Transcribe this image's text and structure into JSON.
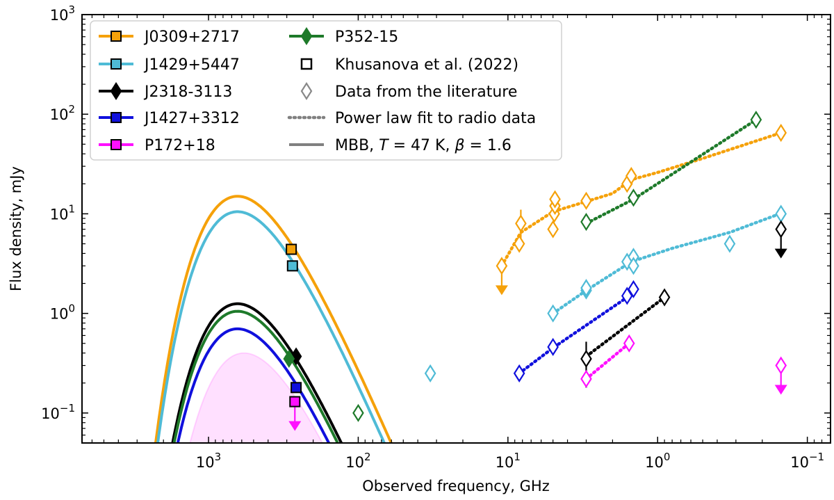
{
  "chart_data": {
    "type": "scatter",
    "title": "",
    "xlabel": "Observed frequency, GHz",
    "ylabel": "Flux density, mJy",
    "x_scale": "log",
    "y_scale": "log",
    "x_inverted": true,
    "xlim": [
      7000,
      0.07
    ],
    "ylim": [
      0.05,
      1000
    ],
    "x_ticks": [
      {
        "value": 1000,
        "label": "10^3",
        "base": "10",
        "exp": "3"
      },
      {
        "value": 100,
        "label": "10^2",
        "base": "10",
        "exp": "2"
      },
      {
        "value": 10,
        "label": "10^1",
        "base": "10",
        "exp": "1"
      },
      {
        "value": 1,
        "label": "10^0",
        "base": "10",
        "exp": "0"
      },
      {
        "value": 0.1,
        "label": "10^-1",
        "base": "10",
        "exp": "−1"
      }
    ],
    "y_ticks": [
      {
        "value": 1000,
        "label": "10^3",
        "base": "10",
        "exp": "3"
      },
      {
        "value": 100,
        "label": "10^2",
        "base": "10",
        "exp": "2"
      },
      {
        "value": 10,
        "label": "10^1",
        "base": "10",
        "exp": "1"
      },
      {
        "value": 1,
        "label": "10^0",
        "base": "10",
        "exp": "0"
      },
      {
        "value": 0.1,
        "label": "10^-1",
        "base": "10",
        "exp": "−1"
      }
    ],
    "legend_position": "top-left",
    "legend_col1": [
      {
        "label": "J0309+2717",
        "color": "#f5a10a",
        "marker": "square"
      },
      {
        "label": "J1429+5447",
        "color": "#4fbbd6",
        "marker": "square"
      },
      {
        "label": "J2318-3113",
        "color": "#000000",
        "marker": "diamond"
      },
      {
        "label": "J1427+3312",
        "color": "#1010dd",
        "marker": "square"
      },
      {
        "label": "P172+18",
        "color": "#ff10ff",
        "marker": "square"
      }
    ],
    "legend_col2": [
      {
        "label": "P352-15",
        "color": "#1e7a2a",
        "type": "diamond-line"
      },
      {
        "label": "Khusanova et al. (2022)",
        "color": "#000000",
        "type": "open-square"
      },
      {
        "label": "Data from the literature",
        "color": "#888888",
        "type": "open-diamond"
      },
      {
        "label": "Power law fit to radio data",
        "color": "#808080",
        "type": "dotted-line"
      },
      {
        "label": "MBB, T = 47 K, β = 1.6",
        "label_prefix": "MBB, ",
        "label_T": "T",
        "label_mid": " = 47 K, ",
        "label_beta": "β",
        "label_end": " = 1.6",
        "color": "#808080",
        "type": "solid-line"
      }
    ],
    "series": [
      {
        "name": "J0309+2717",
        "color": "#f5a10a",
        "mbb": {
          "peak_x": 640,
          "peak_y": 15
        },
        "khusanova": [
          {
            "x": 280,
            "y": 4.4
          }
        ],
        "literature": [
          {
            "x": 11,
            "y": 3.0,
            "upper_limit": true
          },
          {
            "x": 8.4,
            "y": 5.0
          },
          {
            "x": 8.2,
            "y": 8.0
          },
          {
            "x": 5.0,
            "y": 7.0
          },
          {
            "x": 4.9,
            "y": 10.0
          },
          {
            "x": 4.85,
            "y": 12.0
          },
          {
            "x": 4.85,
            "y": 14.0
          },
          {
            "x": 3.0,
            "y": 13.5
          },
          {
            "x": 1.6,
            "y": 20.0
          },
          {
            "x": 1.5,
            "y": 24.0
          },
          {
            "x": 0.15,
            "y": 65.0
          }
        ],
        "literature_errors": [
          {
            "x": 8.2,
            "lo": 4.5,
            "hi": 11.0
          }
        ],
        "fit": [
          {
            "x": 11,
            "y": 3.0
          },
          {
            "x": 8.2,
            "y": 6.5
          },
          {
            "x": 5.0,
            "y": 10.5
          },
          {
            "x": 2.0,
            "y": 16.0
          },
          {
            "x": 1.5,
            "y": 22.0
          },
          {
            "x": 1.0,
            "y": 26.0
          },
          {
            "x": 0.5,
            "y": 36.0
          },
          {
            "x": 0.15,
            "y": 65.0
          }
        ]
      },
      {
        "name": "J1429+5447",
        "color": "#4fbbd6",
        "mbb": {
          "peak_x": 640,
          "peak_y": 10.5
        },
        "khusanova": [
          {
            "x": 275,
            "y": 3.0
          }
        ],
        "literature": [
          {
            "x": 5.0,
            "y": 1.0
          },
          {
            "x": 3.0,
            "y": 1.7
          },
          {
            "x": 3.0,
            "y": 1.8
          },
          {
            "x": 1.6,
            "y": 3.3
          },
          {
            "x": 1.45,
            "y": 3.7
          },
          {
            "x": 1.45,
            "y": 3.0
          },
          {
            "x": 0.33,
            "y": 5.0
          },
          {
            "x": 0.15,
            "y": 10.0
          }
        ],
        "fit": [
          {
            "x": 5.0,
            "y": 1.0
          },
          {
            "x": 3.0,
            "y": 1.7
          },
          {
            "x": 1.5,
            "y": 3.3
          },
          {
            "x": 0.8,
            "y": 4.5
          },
          {
            "x": 0.33,
            "y": 6.5
          },
          {
            "x": 0.14,
            "y": 10.5
          }
        ]
      },
      {
        "name": "J2318-3113",
        "color": "#000000",
        "mbb": {
          "peak_x": 640,
          "peak_y": 1.25
        },
        "khusanova": [
          {
            "x": 260,
            "y": 0.37
          }
        ],
        "literature": [
          {
            "x": 3.0,
            "y": 0.35
          },
          {
            "x": 0.9,
            "y": 1.45
          },
          {
            "x": 0.15,
            "y": 7.0,
            "upper_limit": true
          }
        ],
        "literature_errors": [
          {
            "x": 3.0,
            "lo": 0.18,
            "hi": 0.52
          }
        ],
        "fit": [
          {
            "x": 3.0,
            "y": 0.37
          },
          {
            "x": 0.9,
            "y": 1.45
          }
        ]
      },
      {
        "name": "J1427+3312",
        "color": "#1010dd",
        "mbb": {
          "peak_x": 640,
          "peak_y": 0.7
        },
        "khusanova": [
          {
            "x": 260,
            "y": 0.18
          }
        ],
        "literature": [
          {
            "x": 8.4,
            "y": 0.25
          },
          {
            "x": 5.0,
            "y": 0.46
          },
          {
            "x": 1.6,
            "y": 1.5
          },
          {
            "x": 1.45,
            "y": 1.75
          }
        ],
        "fit": [
          {
            "x": 8.4,
            "y": 0.25
          },
          {
            "x": 5.0,
            "y": 0.45
          },
          {
            "x": 1.6,
            "y": 1.45
          },
          {
            "x": 1.4,
            "y": 1.8
          }
        ]
      },
      {
        "name": "P172+18",
        "color": "#ff10ff",
        "mbb": {
          "peak_x": 580,
          "peak_y": 0.4,
          "shaded": true
        },
        "khusanova": [
          {
            "x": 265,
            "y": 0.13,
            "upper_limit": true
          }
        ],
        "literature": [
          {
            "x": 3.0,
            "y": 0.22
          },
          {
            "x": 1.55,
            "y": 0.5
          },
          {
            "x": 0.15,
            "y": 0.3,
            "upper_limit": true
          }
        ],
        "fit": [
          {
            "x": 3.0,
            "y": 0.22
          },
          {
            "x": 1.55,
            "y": 0.5
          }
        ]
      },
      {
        "name": "P352-15",
        "color": "#1e7a2a",
        "mbb": {
          "peak_x": 640,
          "peak_y": 1.05
        },
        "khusanova": [
          {
            "x": 290,
            "y": 0.35
          }
        ],
        "literature": [
          {
            "x": 100,
            "y": 0.1
          },
          {
            "x": 3.0,
            "y": 8.3
          },
          {
            "x": 1.45,
            "y": 14.5
          },
          {
            "x": 0.22,
            "y": 88.0
          }
        ],
        "fit": [
          {
            "x": 3.0,
            "y": 8.0
          },
          {
            "x": 1.45,
            "y": 14.0
          },
          {
            "x": 0.22,
            "y": 88.0
          }
        ]
      },
      {
        "name": "Data from the literature",
        "color": "#4fbbd6",
        "literature": [
          {
            "x": 33,
            "y": 0.25
          }
        ]
      }
    ]
  }
}
